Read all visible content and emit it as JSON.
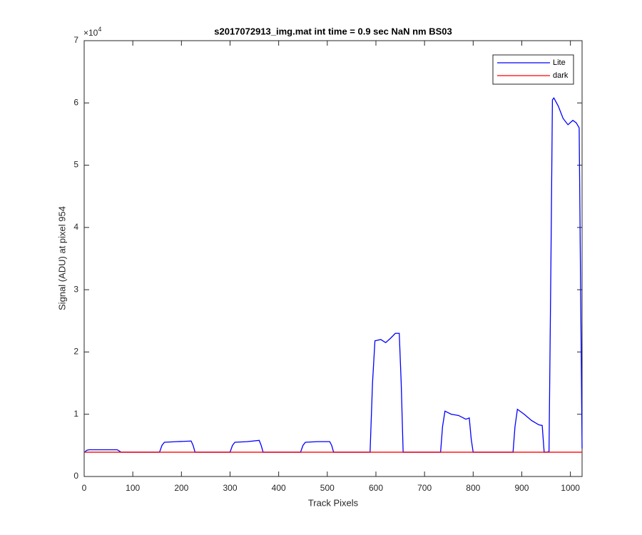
{
  "chart_data": {
    "type": "line",
    "title": "s2017072913_img.mat int time = 0.9 sec  NaN nm BS03",
    "x_label": "Track Pixels",
    "y_label": "Signal (ADU) at pixel 954",
    "y_multiplier": {
      "base": "×10",
      "exponent": "4"
    },
    "xlim": [
      0,
      1024
    ],
    "ylim": [
      0,
      7
    ],
    "xticks": [
      0,
      100,
      200,
      300,
      400,
      500,
      600,
      700,
      800,
      900,
      1000
    ],
    "yticks": [
      0,
      1,
      2,
      3,
      4,
      5,
      6,
      7
    ],
    "legend": "northeast",
    "grid": false,
    "x": [
      1,
      5,
      10,
      40,
      68,
      72,
      76,
      120,
      155,
      160,
      165,
      190,
      220,
      224,
      228,
      260,
      300,
      305,
      310,
      335,
      360,
      364,
      368,
      400,
      445,
      450,
      455,
      480,
      505,
      509,
      513,
      550,
      588,
      593,
      598,
      610,
      620,
      630,
      640,
      648,
      652,
      656,
      700,
      733,
      737,
      742,
      755,
      770,
      785,
      792,
      796,
      800,
      850,
      882,
      886,
      891,
      905,
      920,
      935,
      942,
      946,
      950,
      956,
      960,
      963,
      966,
      975,
      985,
      995,
      1005,
      1012,
      1018,
      1021,
      1024
    ],
    "series": [
      {
        "name": "Lite",
        "color": "#0000ff",
        "values": [
          0.39,
          0.42,
          0.43,
          0.43,
          0.43,
          0.41,
          0.39,
          0.39,
          0.39,
          0.5,
          0.55,
          0.56,
          0.57,
          0.5,
          0.39,
          0.39,
          0.39,
          0.5,
          0.55,
          0.56,
          0.58,
          0.5,
          0.39,
          0.39,
          0.39,
          0.5,
          0.55,
          0.56,
          0.56,
          0.5,
          0.39,
          0.39,
          0.39,
          1.5,
          2.18,
          2.2,
          2.15,
          2.22,
          2.3,
          2.3,
          1.5,
          0.39,
          0.39,
          0.39,
          0.8,
          1.05,
          1.0,
          0.98,
          0.92,
          0.94,
          0.6,
          0.39,
          0.39,
          0.39,
          0.8,
          1.08,
          1.0,
          0.9,
          0.83,
          0.82,
          0.39,
          0.39,
          0.4,
          3.5,
          6.05,
          6.08,
          5.95,
          5.75,
          5.65,
          5.72,
          5.68,
          5.6,
          3.0,
          0.45
        ]
      },
      {
        "name": "dark",
        "color": "#ff0000",
        "values": [
          0.39,
          0.39,
          0.39,
          0.39,
          0.39,
          0.39,
          0.39,
          0.39,
          0.39,
          0.39,
          0.39,
          0.39,
          0.39,
          0.39,
          0.39,
          0.39,
          0.39,
          0.39,
          0.39,
          0.39,
          0.39,
          0.39,
          0.39,
          0.39,
          0.39,
          0.39,
          0.39,
          0.39,
          0.39,
          0.39,
          0.39,
          0.39,
          0.39,
          0.39,
          0.39,
          0.39,
          0.39,
          0.39,
          0.39,
          0.39,
          0.39,
          0.39,
          0.39,
          0.39,
          0.39,
          0.39,
          0.39,
          0.39,
          0.39,
          0.39,
          0.39,
          0.39,
          0.39,
          0.39,
          0.39,
          0.39,
          0.39,
          0.39,
          0.39,
          0.39,
          0.39,
          0.39,
          0.39,
          0.39,
          0.39,
          0.39,
          0.39,
          0.39,
          0.39,
          0.39,
          0.39,
          0.39,
          0.39,
          0.39
        ]
      }
    ]
  }
}
